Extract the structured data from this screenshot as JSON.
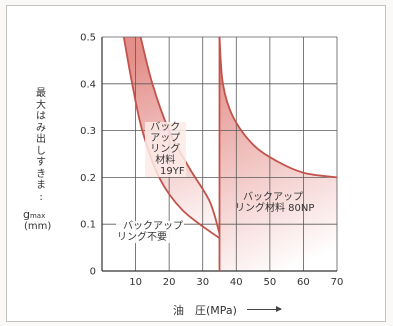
{
  "chart_data": {
    "type": "area",
    "title": "",
    "xlabel": "油　圧(MPa)",
    "ylabel_lines": [
      "最",
      "大",
      "は",
      "み",
      "出",
      "し",
      "す",
      "き",
      "ま",
      ":"
    ],
    "ylabel_symbol": "g",
    "ylabel_subscript": "max",
    "ylabel_unit": "(mm)",
    "xlim": [
      0,
      70
    ],
    "ylim": [
      0,
      0.5
    ],
    "xticks": [
      10,
      20,
      30,
      40,
      50,
      60,
      70
    ],
    "yticks": [
      0,
      0.1,
      0.2,
      0.3,
      0.4,
      0.5
    ],
    "ytick_labels": [
      "0",
      "0.1",
      "0.2",
      "0.3",
      "0.4",
      "0.5"
    ],
    "grid": true,
    "series": [
      {
        "values": [
          [
            6.5,
            0.5
          ],
          [
            9,
            0.4
          ],
          [
            12,
            0.3
          ],
          [
            17,
            0.2
          ],
          [
            24,
            0.13
          ],
          [
            35,
            0.07
          ]
        ]
      },
      {
        "values": [
          [
            11.5,
            0.5
          ],
          [
            15,
            0.4
          ],
          [
            20,
            0.3
          ],
          [
            26,
            0.22
          ],
          [
            32,
            0.15
          ],
          [
            35,
            0.08
          ]
        ]
      },
      {
        "values": [
          [
            35,
            0.5
          ],
          [
            36,
            0.4
          ],
          [
            39,
            0.33
          ],
          [
            45,
            0.27
          ],
          [
            52,
            0.235
          ],
          [
            60,
            0.21
          ],
          [
            70,
            0.2
          ]
        ]
      }
    ],
    "annotations": [
      {
        "lines": [
          "バック",
          "アップ",
          "リング",
          "材料",
          "19YF"
        ]
      },
      {
        "lines": [
          "バックアップ",
          "リング材料 80NP"
        ]
      },
      {
        "lines": [
          "バックアップ",
          "リング不要"
        ]
      }
    ],
    "colors": {
      "line": "#c2534b",
      "fill_dark": "#e48f8a",
      "fill_light": "#ffffff",
      "grid": "#5a5a5a"
    }
  }
}
